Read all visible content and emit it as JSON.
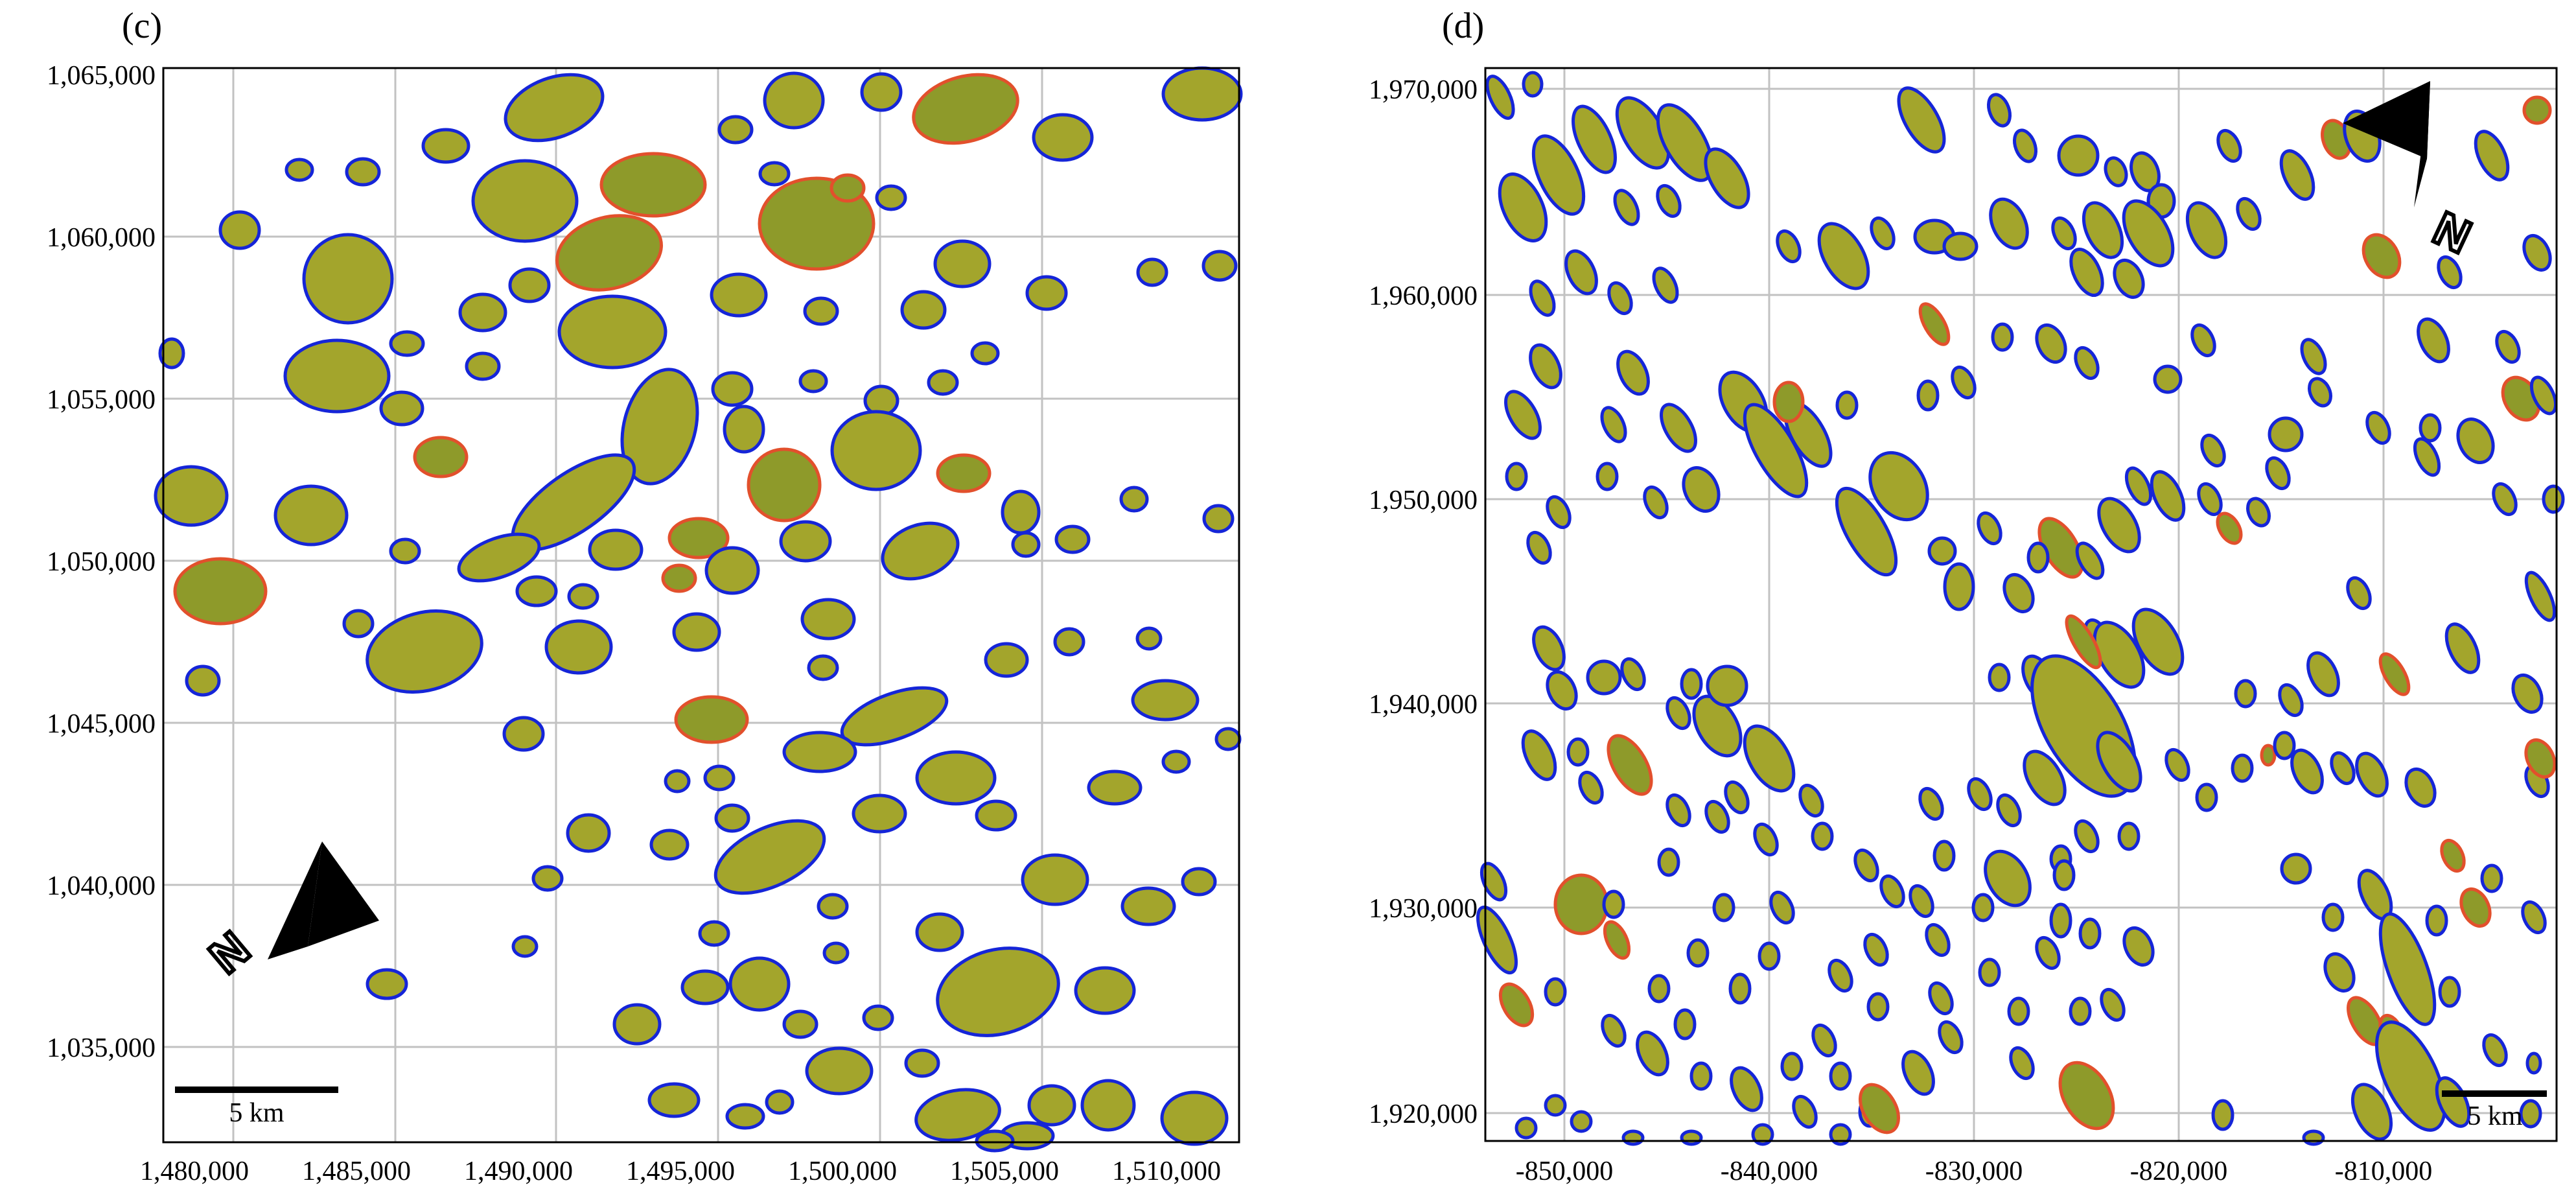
{
  "panels": [
    {
      "label": "(c)",
      "x_ticks": [
        "1,480,000",
        "1,485,000",
        "1,490,000",
        "1,495,000",
        "1,500,000",
        "1,505,000",
        "1,510,000"
      ],
      "y_ticks": [
        "1,065,000",
        "1,060,000",
        "1,055,000",
        "1,050,000",
        "1,045,000",
        "1,040,000",
        "1,035,000"
      ],
      "scale_bar_label": "5 km",
      "north_label": "N",
      "north_arrow": "north-arrow-icon",
      "colors": {
        "field": "#a3a52c",
        "outline_primary": "#1525d8",
        "outline_secondary": "#e2502c",
        "grid": "#c2c2c2"
      }
    },
    {
      "label": "(d)",
      "x_ticks": [
        "-850,000",
        "-840,000",
        "-830,000",
        "-820,000",
        "-810,000"
      ],
      "y_ticks": [
        "1,970,000",
        "1,960,000",
        "1,950,000",
        "1,940,000",
        "1,930,000",
        "1,920,000"
      ],
      "scale_bar_label": "5 km",
      "north_label": "N",
      "north_arrow": "north-arrow-icon",
      "colors": {
        "field": "#a3a52c",
        "outline_primary": "#1525d8",
        "outline_secondary": "#e2502c",
        "grid": "#c2c2c2"
      }
    }
  ]
}
